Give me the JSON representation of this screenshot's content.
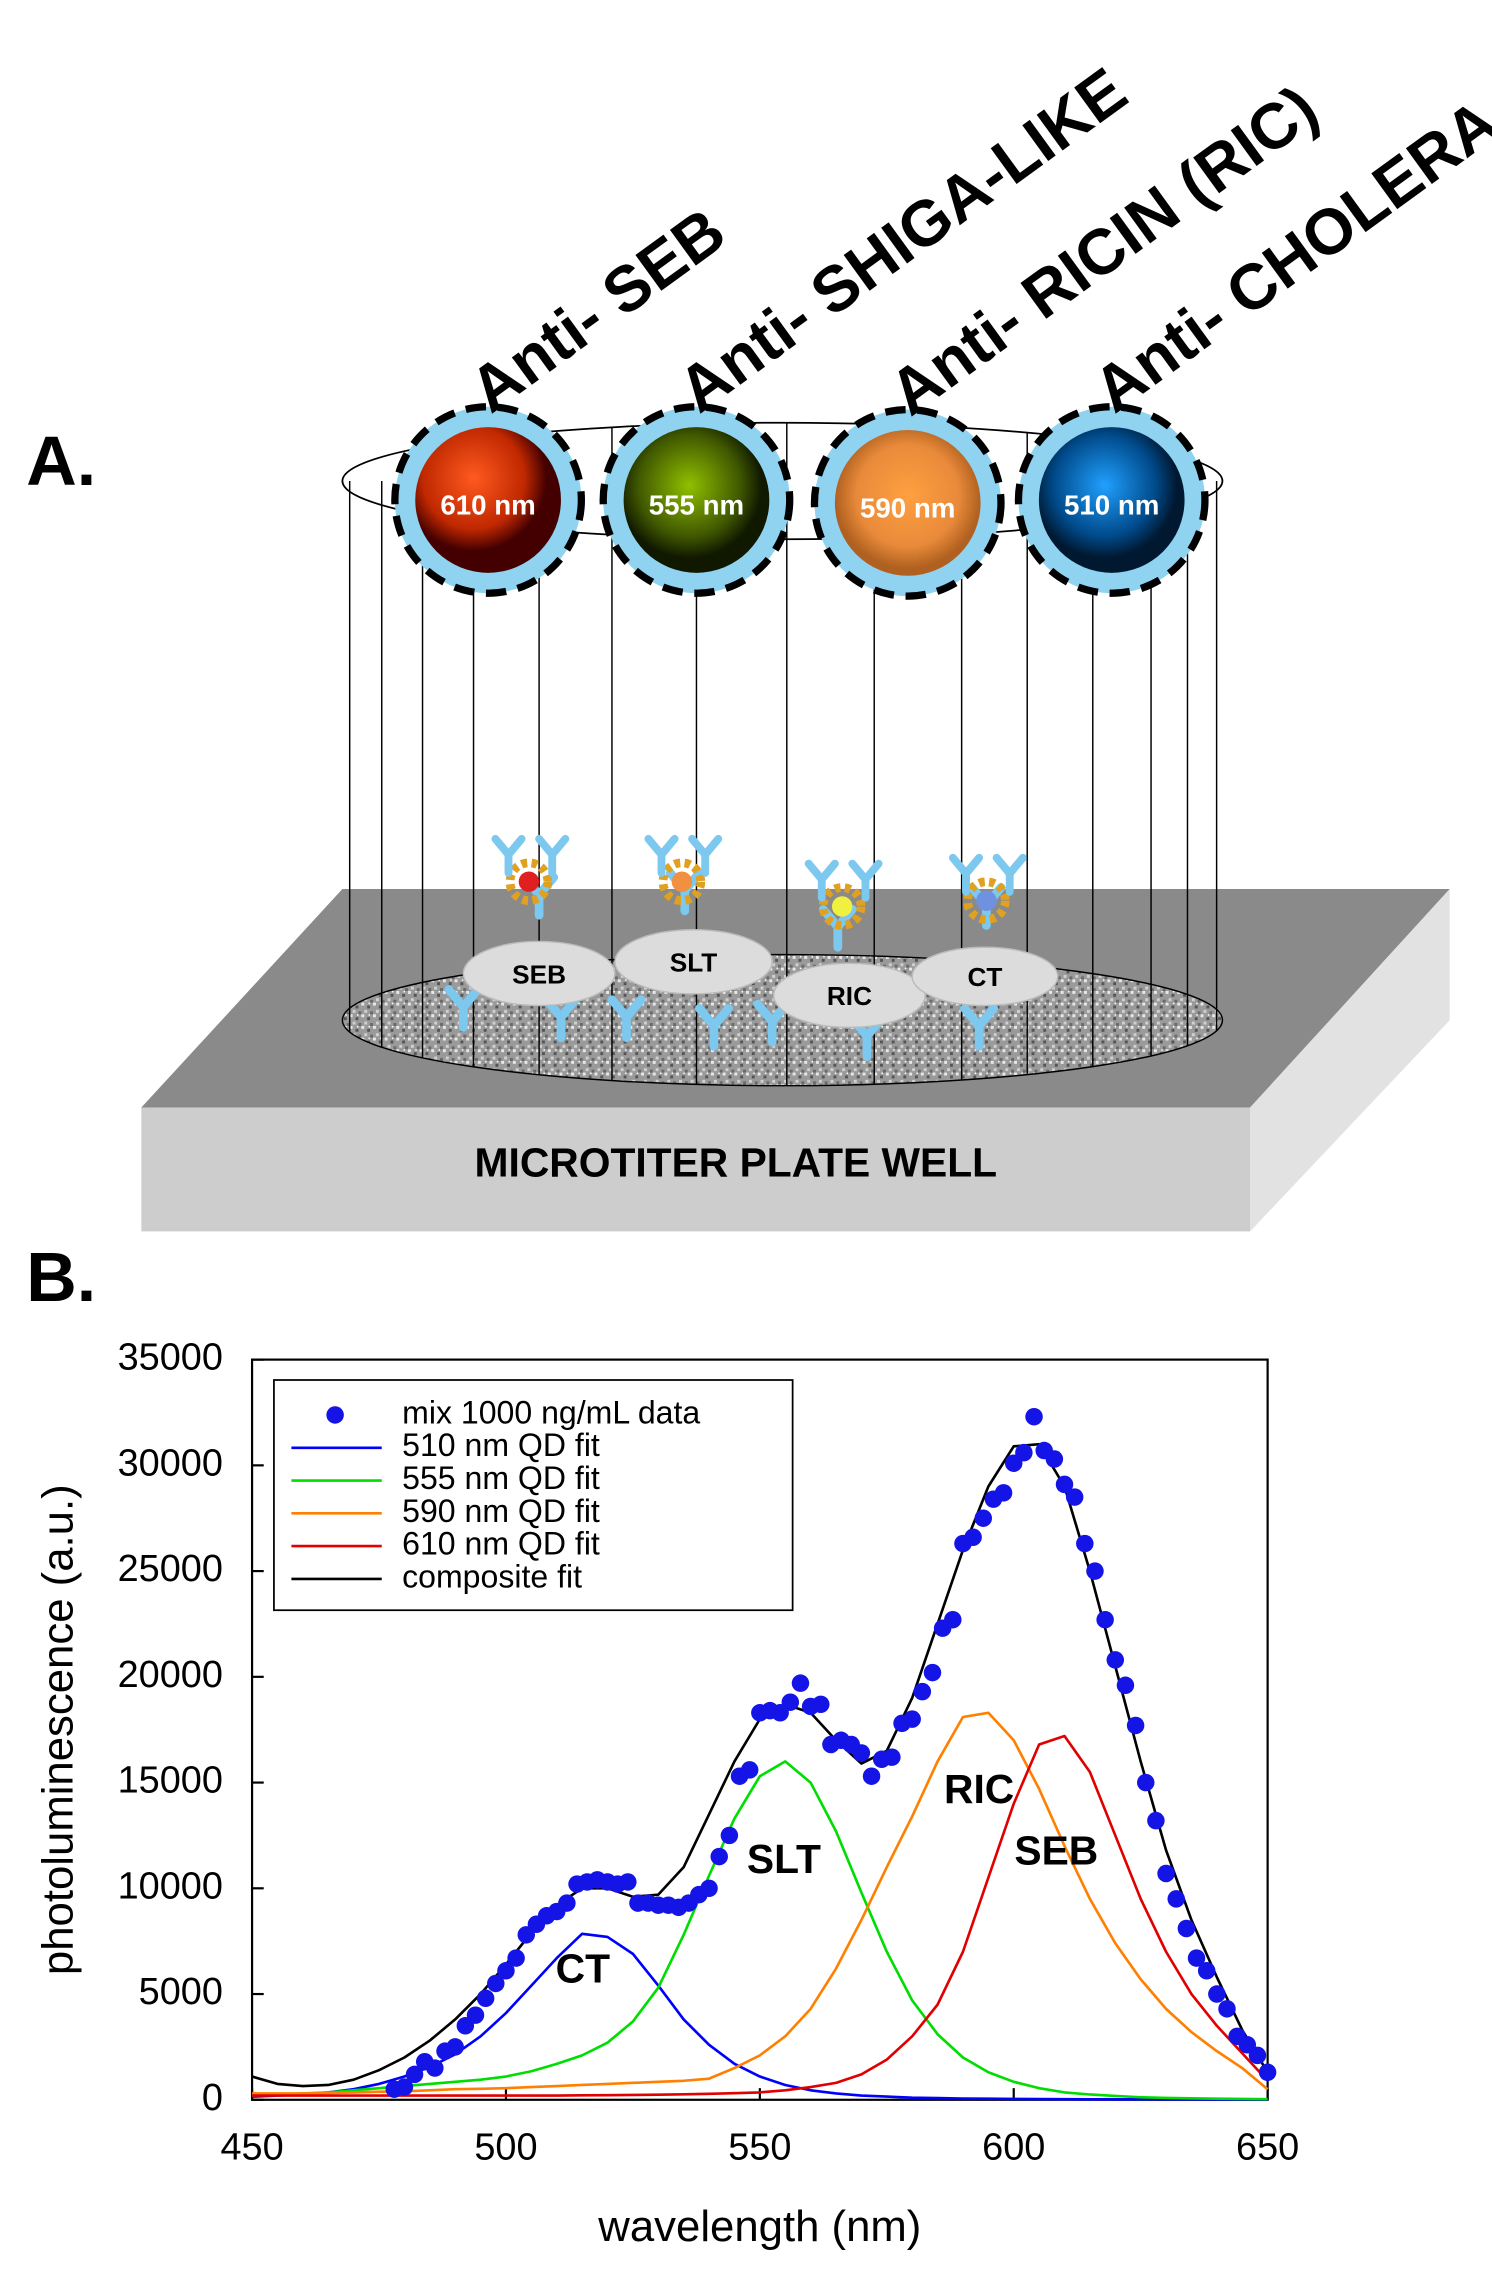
{
  "panel_a": {
    "label": "A.",
    "targets": [
      "Anti- SEB",
      "Anti- SHIGA-LIKE",
      "Anti- RICIN (RIC)",
      "Anti- CHOLERA"
    ],
    "dots": [
      "610 nm",
      "555 nm",
      "590 nm",
      "510 nm"
    ],
    "antigens": [
      "SEB",
      "SLT",
      "RIC",
      "CT"
    ],
    "plate": "MICROTITER PLATE WELL"
  },
  "chart_data": {
    "type": "line",
    "panel_label": "B.",
    "x_label": "wavelength (nm)",
    "y_label": "photoluminescence (a.u.)",
    "xlim": [
      450,
      650
    ],
    "xticks": [
      450,
      500,
      550,
      600,
      650
    ],
    "ylim": [
      0,
      35000
    ],
    "yticks": [
      0,
      5000,
      10000,
      15000,
      20000,
      25000,
      30000,
      35000
    ],
    "legend": "upper-left",
    "annotations": [
      "CT",
      "SLT",
      "RIC",
      "SEB"
    ],
    "series": [
      {
        "name": "mix 1000 ng/mL data",
        "color": "#1414e6",
        "style": "markers",
        "x": [
          478,
          480,
          482,
          484,
          486,
          488,
          490,
          492,
          494,
          496,
          498,
          500,
          502,
          504,
          506,
          508,
          510,
          512,
          514,
          516,
          518,
          520,
          522,
          524,
          526,
          528,
          530,
          532,
          534,
          536,
          538,
          540,
          542,
          544,
          546,
          548,
          550,
          552,
          554,
          556,
          558,
          560,
          562,
          564,
          566,
          568,
          570,
          572,
          574,
          576,
          578,
          580,
          582,
          584,
          586,
          588,
          590,
          592,
          594,
          596,
          598,
          600,
          602,
          604,
          606,
          608,
          610,
          612,
          614,
          616,
          618,
          620,
          622,
          624,
          626,
          628,
          630,
          632,
          634,
          636,
          638,
          640,
          642,
          644,
          646,
          648,
          650
        ],
        "values": [
          500,
          600,
          1200,
          1800,
          1500,
          2300,
          2500,
          3500,
          4000,
          4800,
          5500,
          6100,
          6700,
          7800,
          8300,
          8700,
          8900,
          9300,
          10200,
          10300,
          10400,
          10300,
          10200,
          10300,
          9300,
          9300,
          9200,
          9200,
          9100,
          9300,
          9700,
          10000,
          11500,
          12500,
          15300,
          15600,
          18300,
          18400,
          18300,
          18800,
          19700,
          18600,
          18700,
          16800,
          17000,
          16800,
          16400,
          15300,
          16100,
          16200,
          17800,
          18000,
          19300,
          20200,
          22300,
          22700,
          26300,
          26600,
          27500,
          28400,
          28700,
          30100,
          30600,
          32300,
          30700,
          30300,
          29100,
          28500,
          26300,
          25000,
          22700,
          20800,
          19600,
          17700,
          15000,
          13200,
          10700,
          9500,
          8100,
          6700,
          6100,
          5000,
          4300,
          3000,
          2600,
          2100,
          1300
        ]
      },
      {
        "name": "510 nm QD fit",
        "color": "#0000ff",
        "style": "line",
        "x": [
          450,
          455,
          460,
          465,
          470,
          475,
          480,
          485,
          490,
          495,
          500,
          505,
          510,
          515,
          520,
          525,
          530,
          535,
          540,
          545,
          550,
          555,
          560,
          565,
          570,
          575,
          580,
          585,
          590,
          595,
          600,
          605,
          610,
          615,
          620,
          625,
          630,
          635,
          640,
          645,
          650
        ],
        "values": [
          150,
          200,
          250,
          350,
          500,
          750,
          1100,
          1550,
          2150,
          3000,
          4100,
          5400,
          6700,
          7850,
          7700,
          6900,
          5400,
          3800,
          2600,
          1700,
          1100,
          700,
          450,
          300,
          200,
          150,
          100,
          80,
          60,
          50,
          40,
          35,
          30,
          25,
          20,
          20,
          15,
          15,
          10,
          10,
          10
        ]
      },
      {
        "name": "555 nm QD fit",
        "color": "#00dd00",
        "style": "line",
        "x": [
          450,
          455,
          460,
          465,
          470,
          475,
          480,
          485,
          490,
          495,
          500,
          505,
          510,
          515,
          520,
          525,
          530,
          535,
          540,
          545,
          550,
          555,
          560,
          565,
          570,
          575,
          580,
          585,
          590,
          595,
          600,
          605,
          610,
          615,
          620,
          625,
          630,
          635,
          640,
          645,
          650
        ],
        "values": [
          200,
          250,
          300,
          350,
          450,
          550,
          650,
          750,
          850,
          950,
          1100,
          1350,
          1700,
          2100,
          2700,
          3700,
          5300,
          7800,
          10600,
          13300,
          15300,
          16000,
          15000,
          12700,
          9800,
          7000,
          4700,
          3100,
          2000,
          1300,
          850,
          550,
          350,
          250,
          180,
          120,
          90,
          70,
          50,
          40,
          30
        ]
      },
      {
        "name": "590 nm QD fit",
        "color": "#ff8000",
        "style": "line",
        "x": [
          450,
          455,
          460,
          465,
          470,
          475,
          480,
          485,
          490,
          495,
          500,
          505,
          510,
          515,
          520,
          525,
          530,
          535,
          540,
          545,
          550,
          555,
          560,
          565,
          570,
          575,
          580,
          585,
          590,
          595,
          600,
          605,
          610,
          615,
          620,
          625,
          630,
          635,
          640,
          645,
          650
        ],
        "values": [
          300,
          300,
          300,
          320,
          350,
          380,
          400,
          450,
          500,
          520,
          550,
          600,
          650,
          700,
          750,
          800,
          850,
          900,
          1000,
          1500,
          2100,
          3000,
          4300,
          6200,
          8500,
          11000,
          13400,
          16000,
          18100,
          18300,
          17000,
          14700,
          12000,
          9500,
          7400,
          5700,
          4300,
          3200,
          2300,
          1500,
          500
        ]
      },
      {
        "name": "610 nm QD fit",
        "color": "#e00000",
        "style": "line",
        "x": [
          450,
          455,
          460,
          465,
          470,
          475,
          480,
          485,
          490,
          495,
          500,
          505,
          510,
          515,
          520,
          525,
          530,
          535,
          540,
          545,
          550,
          555,
          560,
          565,
          570,
          575,
          580,
          585,
          590,
          595,
          600,
          605,
          610,
          615,
          620,
          625,
          630,
          635,
          640,
          645,
          650
        ],
        "values": [
          200,
          200,
          200,
          200,
          200,
          200,
          200,
          200,
          200,
          200,
          200,
          200,
          200,
          210,
          220,
          230,
          240,
          260,
          280,
          310,
          350,
          450,
          600,
          800,
          1200,
          1900,
          3000,
          4500,
          7000,
          10500,
          14000,
          16800,
          17200,
          15500,
          12500,
          9500,
          7000,
          5000,
          3500,
          2200,
          900
        ]
      },
      {
        "name": "composite fit",
        "color": "#000000",
        "style": "line",
        "x": [
          450,
          455,
          460,
          465,
          470,
          475,
          480,
          485,
          490,
          495,
          500,
          505,
          510,
          515,
          520,
          525,
          530,
          535,
          540,
          545,
          550,
          555,
          560,
          565,
          570,
          575,
          580,
          585,
          590,
          595,
          600,
          605,
          610,
          615,
          620,
          625,
          630,
          635,
          640,
          645,
          650
        ],
        "values": [
          1100,
          750,
          650,
          700,
          950,
          1400,
          2000,
          2800,
          3800,
          5000,
          6400,
          7900,
          9200,
          10000,
          10000,
          9600,
          9700,
          11000,
          13500,
          16000,
          18000,
          18700,
          18300,
          17000,
          15900,
          16500,
          19000,
          22500,
          26000,
          29000,
          30900,
          31000,
          29000,
          25000,
          20500,
          16000,
          11800,
          8500,
          5800,
          3300,
          1300
        ]
      }
    ]
  }
}
